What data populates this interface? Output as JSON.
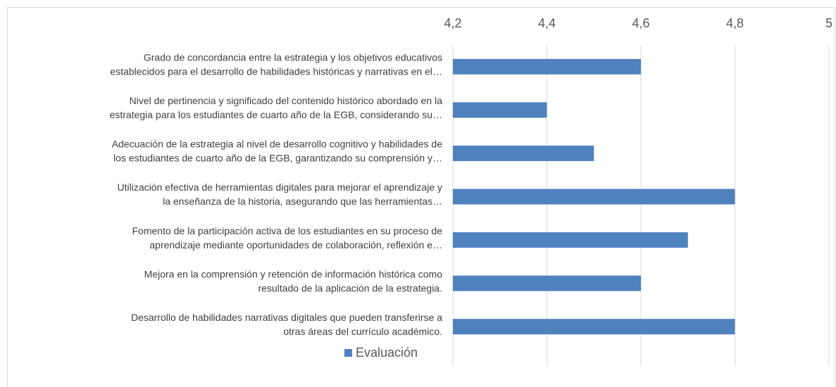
{
  "chart_data": {
    "type": "barh",
    "categories": [
      [
        "Grado de concordancia entre la estrategia y los objetivos educativos",
        "establecidos para el desarrollo de habilidades históricas y narrativas en el…"
      ],
      [
        "Nivel de pertinencia y significado del contenido histórico abordado en la",
        "estrategia para los estudiantes de cuarto año de la EGB, considerando su…"
      ],
      [
        "Adecuación de la estrategia al nivel de desarrollo cognitivo y habilidades de",
        "los estudiantes de cuarto año de la EGB, garantizando su comprensión y…"
      ],
      [
        "Utilización efectiva de herramientas digitales para mejorar el aprendizaje y",
        "la enseñanza de la historia, asegurando que las herramientas…"
      ],
      [
        "Fomento de la participación activa de los estudiantes en su proceso de",
        "aprendizaje mediante oportunidades de colaboración, reflexión e…"
      ],
      [
        "Mejora en la comprensión y retención de información histórica como",
        "resultado de la aplicación de la estrategia."
      ],
      [
        "Desarrollo de habilidades narrativas digitales que pueden transferirse a",
        "otras áreas del currículo académico."
      ]
    ],
    "series": [
      {
        "name": "Evaluación",
        "color": "#4f81bd",
        "values": [
          4.6,
          4.4,
          4.5,
          4.8,
          4.7,
          4.6,
          4.8
        ]
      }
    ],
    "xlim": [
      4.2,
      5
    ],
    "xticks": [
      {
        "value": 4.2,
        "label": "4,2"
      },
      {
        "value": 4.4,
        "label": "4,4"
      },
      {
        "value": 4.6,
        "label": "4,6"
      },
      {
        "value": 4.8,
        "label": "4,8"
      },
      5
    ],
    "grid": true,
    "legend": "bottom"
  }
}
